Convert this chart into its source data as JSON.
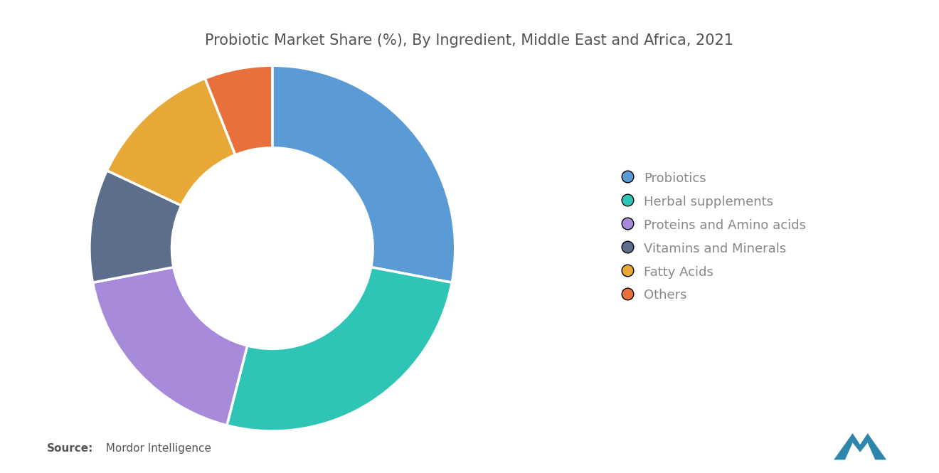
{
  "title": "Probiotic Market Share (%), By Ingredient, Middle East and Africa, 2021",
  "title_color": "#555555",
  "title_fontsize": 15,
  "background_color": "#ffffff",
  "labels": [
    "Probiotics",
    "Herbal supplements",
    "Proteins and Amino acids",
    "Vitamins and Minerals",
    "Fatty Acids",
    "Others"
  ],
  "values": [
    28,
    26,
    18,
    10,
    12,
    6
  ],
  "colors": [
    "#5B9BD5",
    "#2EC4B6",
    "#A78BDA",
    "#5C6E8C",
    "#E8A838",
    "#E8713B"
  ],
  "donut_width": 0.45,
  "legend_fontsize": 13,
  "legend_text_color": "#888888",
  "source_bold": "Source:",
  "source_normal": "  Mordor Intelligence"
}
